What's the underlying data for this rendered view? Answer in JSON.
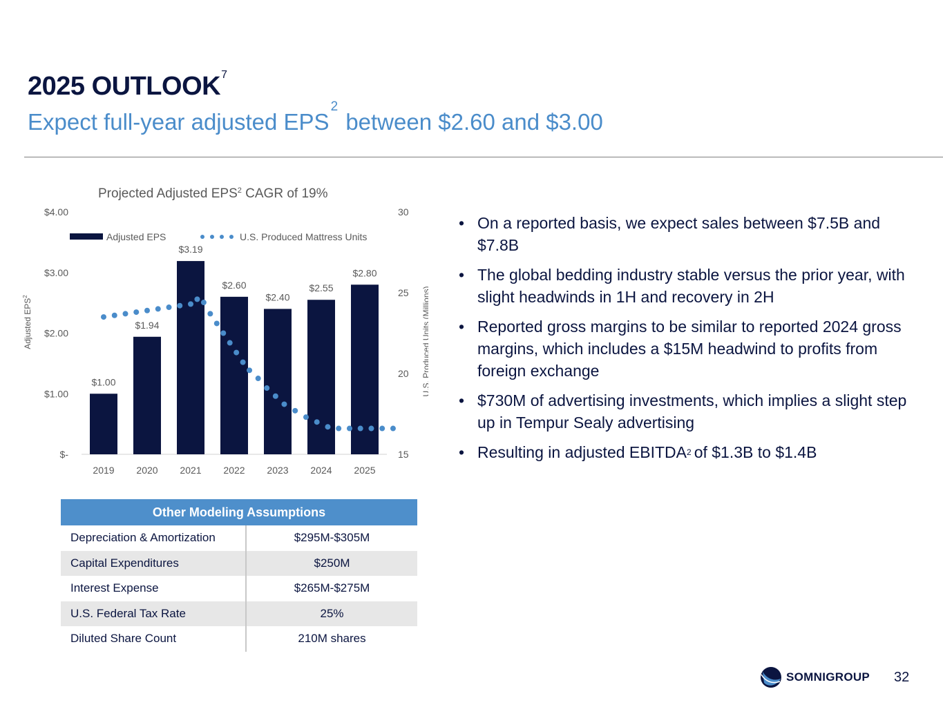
{
  "header": {
    "title": "2025 OUTLOOK",
    "title_sup": "7",
    "subtitle_pre": "Expect full-year adjusted EPS",
    "subtitle_sup": "2",
    "subtitle_post": "between $2.60 and $3.00"
  },
  "colors": {
    "navy": "#0b1540",
    "accent_blue": "#4a8cca",
    "table_header": "#4e8fcb"
  },
  "chart_data": {
    "type": "bar",
    "title": "Projected Adjusted EPS",
    "title_sup": "2",
    "title_post": " CAGR of 19%",
    "categories": [
      "2019",
      "2020",
      "2021",
      "2022",
      "2023",
      "2024",
      "2025"
    ],
    "series": [
      {
        "name": "Adjusted EPS",
        "type": "bar",
        "axis": "left",
        "values": [
          1.0,
          1.94,
          3.19,
          2.6,
          2.4,
          2.55,
          2.8
        ],
        "labels": [
          "$1.00",
          "$1.94",
          "$3.19",
          "$2.60",
          "$2.40",
          "$2.55",
          "$2.80"
        ]
      },
      {
        "name": "U.S. Produced Mattress Units",
        "type": "dotted-line",
        "axis": "right",
        "x": [
          2019.0,
          2019.25,
          2019.5,
          2019.75,
          2020.0,
          2020.25,
          2020.5,
          2020.75,
          2021.0,
          2021.15,
          2021.3,
          2021.45,
          2021.6,
          2021.75,
          2021.9,
          2022.05,
          2022.2,
          2022.35,
          2022.55,
          2022.75,
          2022.95,
          2023.15,
          2023.4,
          2023.65,
          2023.9,
          2024.15,
          2024.4,
          2024.65,
          2024.9,
          2025.15,
          2025.4,
          2025.65
        ],
        "values": [
          23.5,
          23.6,
          23.7,
          23.8,
          23.9,
          24.0,
          24.1,
          24.2,
          24.3,
          24.6,
          24.4,
          23.7,
          23.1,
          22.5,
          21.9,
          21.3,
          20.7,
          20.2,
          19.7,
          19.1,
          18.6,
          18.1,
          17.7,
          17.3,
          17.0,
          16.7,
          16.6,
          16.6,
          16.6,
          16.6,
          16.6,
          16.6
        ]
      }
    ],
    "y_left": {
      "label": "Adjusted EPS",
      "label_sup": "2",
      "ylim": [
        0,
        4
      ],
      "ticks": [
        0,
        1,
        2,
        3,
        4
      ],
      "tick_labels": [
        "$-",
        "$1.00",
        "$2.00",
        "$3.00",
        "$4.00"
      ]
    },
    "y_right": {
      "label": "U.S. Produced Units (Millions)",
      "ylim": [
        15,
        30
      ],
      "ticks": [
        15,
        20,
        25,
        30
      ],
      "tick_labels": [
        "15",
        "20",
        "25",
        "30"
      ]
    },
    "legend": {
      "position": "top"
    },
    "bar_color": "#0b1540",
    "line_color": "#4a8cca"
  },
  "bullets": {
    "items": [
      "On a reported basis, we expect sales between $7.5B and $7.8B",
      "The global bedding industry stable versus the prior year, with slight headwinds in 1H and recovery in 2H",
      "Reported gross margins to be similar to reported 2024 gross margins, which includes a $15M headwind to profits from foreign exchange",
      "$730M of advertising investments, which implies a slight step up in Tempur Sealy advertising"
    ],
    "last_pre": "Resulting in adjusted EBITDA",
    "last_sup": "2",
    "last_post": "of $1.3B to $1.4B"
  },
  "assumptions": {
    "header": "Other Modeling Assumptions",
    "rows": [
      {
        "label": "Depreciation & Amortization",
        "value": "$295M-$305M"
      },
      {
        "label": "Capital Expenditures",
        "value": "$250M"
      },
      {
        "label": "Interest Expense",
        "value": "$265M-$275M"
      },
      {
        "label": "U.S. Federal Tax Rate",
        "value": "25%"
      },
      {
        "label": "Diluted Share Count",
        "value": "210M shares"
      }
    ]
  },
  "footer": {
    "brand": "SOMNIGROUP",
    "page_number": "32"
  }
}
